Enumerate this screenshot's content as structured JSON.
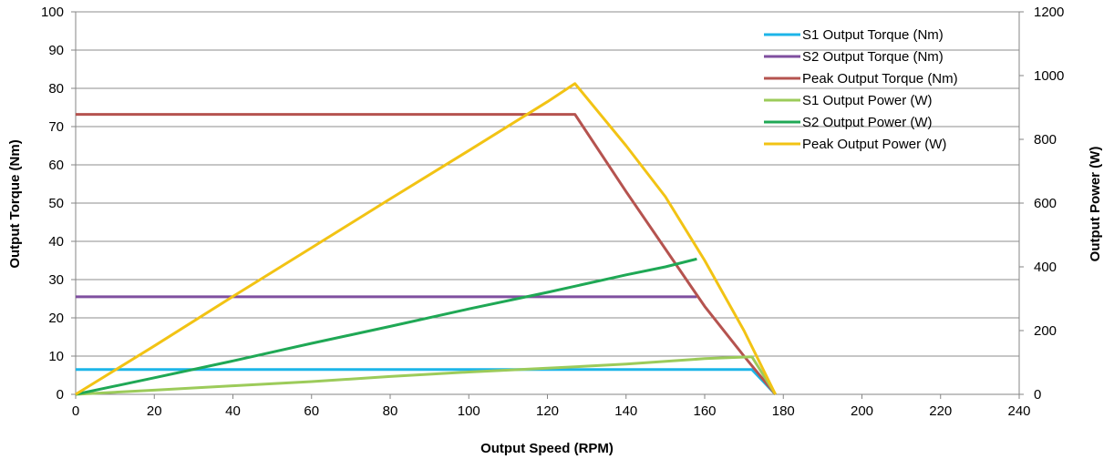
{
  "chart_data": {
    "type": "line",
    "title": "",
    "xlabel": "Output Speed (RPM)",
    "ylabel": "Output Torque (Nm)",
    "y2label": "Output Power (W)",
    "xlim": [
      0,
      240
    ],
    "ylim": [
      0,
      100
    ],
    "y2lim": [
      0,
      1200
    ],
    "xticks": [
      "0",
      "20",
      "40",
      "60",
      "80",
      "100",
      "120",
      "140",
      "160",
      "180",
      "200",
      "220",
      "240"
    ],
    "yticks": [
      "0",
      "10",
      "20",
      "30",
      "40",
      "50",
      "60",
      "70",
      "80",
      "90",
      "100"
    ],
    "y2ticks": [
      "0",
      "200",
      "400",
      "600",
      "800",
      "1000",
      "1200"
    ],
    "grid": true,
    "legend_position": "top-right",
    "series": [
      {
        "name": "S1 Output Torque (Nm)",
        "axis": "left",
        "color": "#1cb5e8",
        "x": [
          0,
          158,
          172,
          178
        ],
        "y": [
          6.5,
          6.5,
          6.5,
          0
        ]
      },
      {
        "name": "S2 Output Torque (Nm)",
        "axis": "left",
        "color": "#7f4f9f",
        "x": [
          0,
          158
        ],
        "y": [
          25.5,
          25.5
        ]
      },
      {
        "name": "Peak Output Torque (Nm)",
        "axis": "left",
        "color": "#b5534f",
        "x": [
          0,
          127,
          140,
          150,
          160,
          170,
          178
        ],
        "y": [
          73.2,
          73.2,
          53,
          38,
          23,
          10,
          0
        ]
      },
      {
        "name": "S1 Output Power (W)",
        "axis": "right",
        "color": "#9ccb5a",
        "x": [
          0,
          20,
          40,
          60,
          80,
          100,
          120,
          140,
          160,
          172,
          178
        ],
        "y": [
          0,
          13,
          27,
          40,
          56,
          70,
          82,
          95,
          112,
          118,
          0
        ]
      },
      {
        "name": "S2 Output Power (W)",
        "axis": "right",
        "color": "#1fa855",
        "x": [
          0,
          20,
          40,
          60,
          80,
          100,
          120,
          140,
          150,
          158
        ],
        "y": [
          0,
          52,
          105,
          160,
          213,
          268,
          320,
          375,
          400,
          425
        ]
      },
      {
        "name": "Peak Output Power (W)",
        "axis": "right",
        "color": "#f2c314",
        "x": [
          0,
          20,
          40,
          60,
          80,
          100,
          120,
          127,
          140,
          150,
          160,
          170,
          178
        ],
        "y": [
          0,
          152,
          307,
          460,
          613,
          765,
          918,
          975,
          780,
          620,
          420,
          200,
          0
        ]
      }
    ]
  }
}
